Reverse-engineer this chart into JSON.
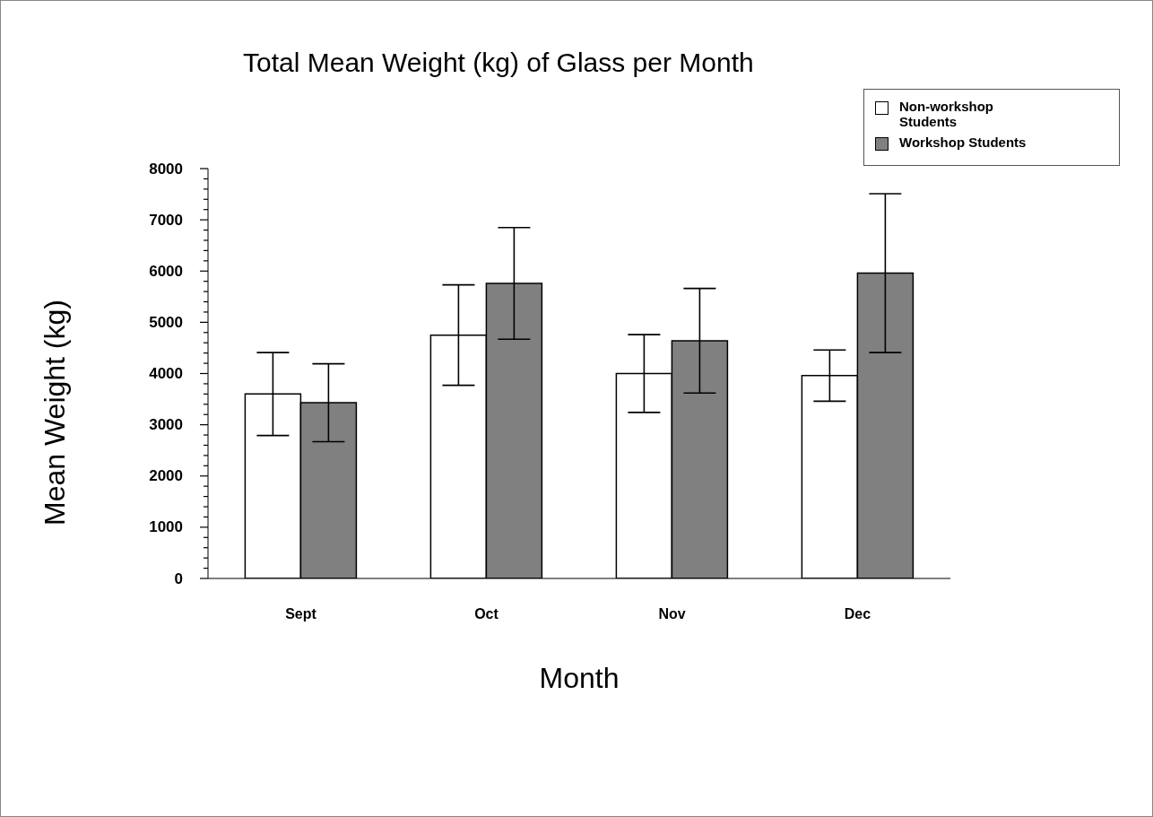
{
  "chart_data": {
    "type": "bar",
    "title": "Total Mean Weight (kg) of Glass per Month",
    "xlabel": "Month",
    "ylabel": "Mean Weight (kg)",
    "categories": [
      "Sept",
      "Oct",
      "Nov",
      "Dec"
    ],
    "series": [
      {
        "name": "Non-workshop Students",
        "color": "#ffffff",
        "values": [
          3600,
          4750,
          4000,
          3960
        ],
        "errors": [
          810,
          980,
          760,
          500
        ]
      },
      {
        "name": "Workshop Students",
        "color": "#808080",
        "values": [
          3430,
          5760,
          4640,
          5960
        ],
        "errors": [
          760,
          1090,
          1020,
          1550
        ]
      }
    ],
    "ylim": [
      0,
      8000
    ],
    "yticks": [
      0,
      {
        "value": 200,
        "label": null
      },
      {
        "value": 400,
        "label": null
      },
      {
        "value": 600,
        "label": null
      },
      {
        "value": 800,
        "label": null
      },
      1000,
      {
        "value": 1200,
        "label": null
      },
      {
        "value": 1400,
        "label": null
      },
      {
        "value": 1600,
        "label": null
      },
      {
        "value": 1800,
        "label": null
      },
      2000,
      {
        "value": 2200,
        "label": null
      },
      {
        "value": 2400,
        "label": null
      },
      {
        "value": 2600,
        "label": null
      },
      {
        "value": 2800,
        "label": null
      },
      3000,
      {
        "value": 3200,
        "label": null
      },
      {
        "value": 3400,
        "label": null
      },
      {
        "value": 3600,
        "label": null
      },
      {
        "value": 3800,
        "label": null
      },
      4000,
      {
        "value": 4200,
        "label": null
      },
      {
        "value": 4400,
        "label": null
      },
      {
        "value": 4600,
        "label": null
      },
      {
        "value": 4800,
        "label": null
      },
      5000,
      {
        "value": 5200,
        "label": null
      },
      {
        "value": 5400,
        "label": null
      },
      {
        "value": 5600,
        "label": null
      },
      {
        "value": 5800,
        "label": null
      },
      6000,
      {
        "value": 6200,
        "label": null
      },
      {
        "value": 6400,
        "label": null
      },
      {
        "value": 6600,
        "label": null
      },
      {
        "value": 6800,
        "label": null
      },
      7000,
      {
        "value": 7200,
        "label": null
      },
      {
        "value": 7400,
        "label": null
      },
      {
        "value": 7600,
        "label": null
      },
      {
        "value": 7800,
        "label": null
      },
      8000
    ],
    "legend": "top right"
  }
}
